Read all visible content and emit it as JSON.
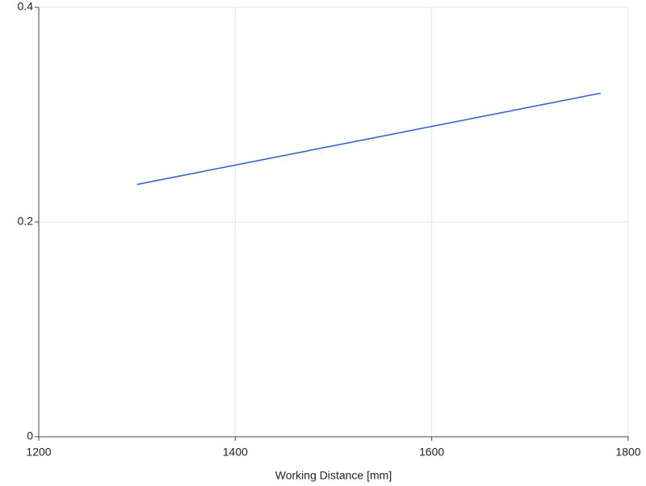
{
  "chart_data": {
    "type": "line",
    "x_label": "Working Distance [mm]",
    "x": [
      1300,
      1772
    ],
    "series": [
      {
        "color": "#3366cc",
        "values": [
          0.235,
          0.32
        ]
      }
    ],
    "xlim": [
      1200,
      1800
    ],
    "xticks": [
      1200,
      1400,
      1600,
      1800
    ],
    "ylim": [
      0,
      0.4
    ],
    "yticks": [
      0,
      0.2,
      0.4
    ],
    "grid": true
  }
}
